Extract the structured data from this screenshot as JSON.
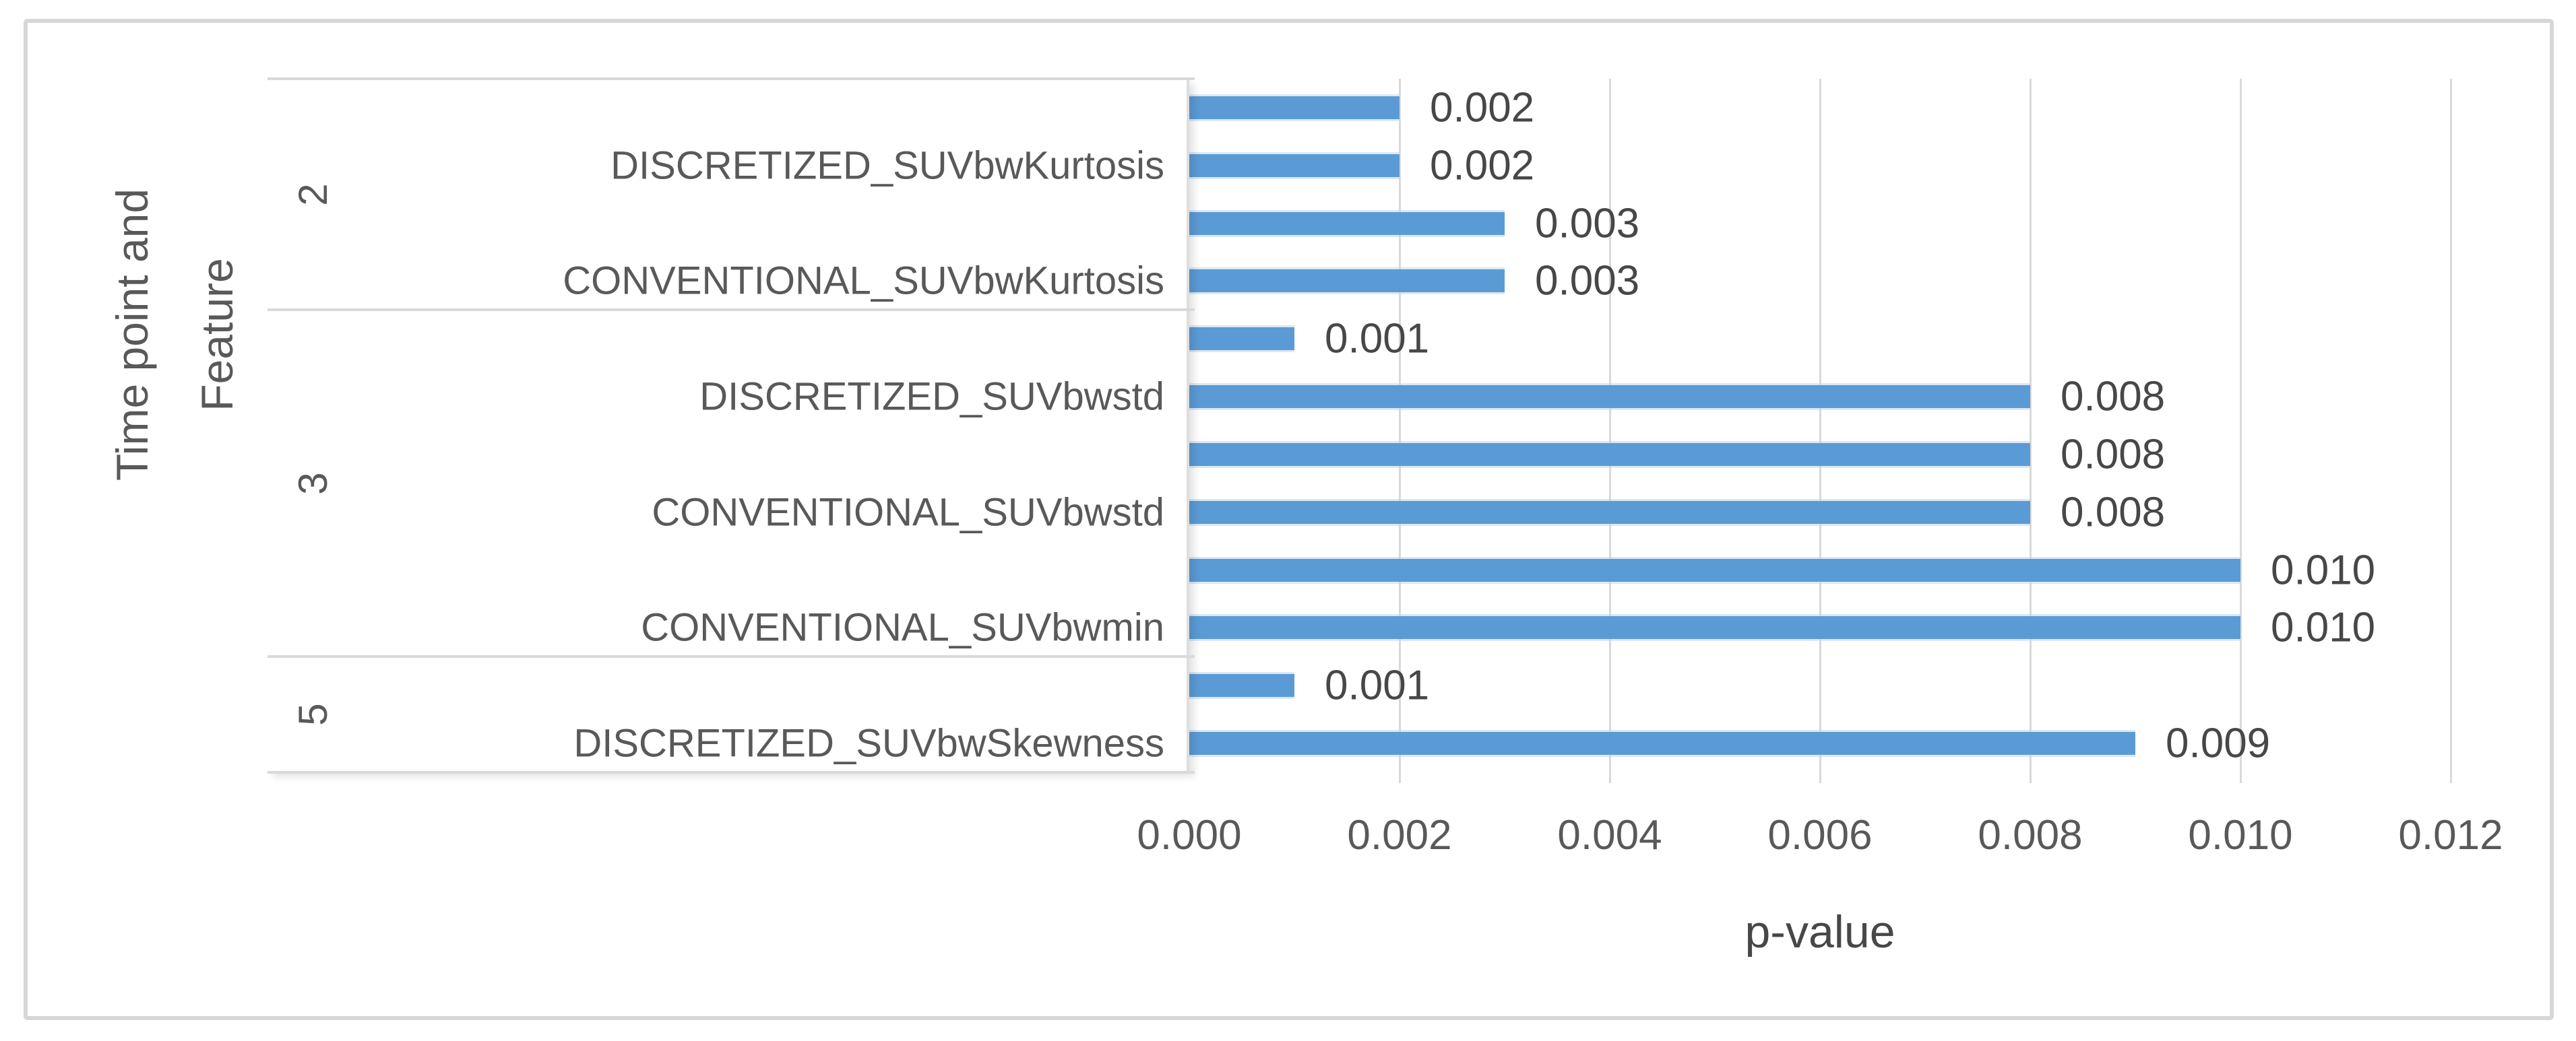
{
  "chart_data": {
    "type": "bar",
    "orientation": "horizontal",
    "xlabel": "p-value",
    "ylabel": "Time point and Feature",
    "ylabel_lines": [
      "Time point and",
      "Feature"
    ],
    "xlim": [
      0,
      0.012
    ],
    "x_ticks": [
      "0.000",
      "0.002",
      "0.004",
      "0.006",
      "0.008",
      "0.010",
      "0.012"
    ],
    "grid": true,
    "legend": false,
    "bar_color": "#5b9bd5",
    "grid_color": "#d9d9d9",
    "axis_text_color": "#595959",
    "groups": [
      {
        "time_point": "2",
        "features": [
          {
            "name": "DISCRETIZED_SUVbwKurtosis",
            "values": [
              0.002,
              0.002
            ],
            "value_labels": [
              "0.002",
              "0.002"
            ]
          },
          {
            "name": "CONVENTIONAL_SUVbwKurtosis",
            "values": [
              0.003,
              0.003
            ],
            "value_labels": [
              "0.003",
              "0.003"
            ]
          }
        ]
      },
      {
        "time_point": "3",
        "features": [
          {
            "name": "DISCRETIZED_SUVbwstd",
            "values": [
              0.001,
              0.008
            ],
            "value_labels": [
              "0.001",
              "0.008"
            ]
          },
          {
            "name": "CONVENTIONAL_SUVbwstd",
            "values": [
              0.008,
              0.008
            ],
            "value_labels": [
              "0.008",
              "0.008"
            ]
          },
          {
            "name": "CONVENTIONAL_SUVbwmin",
            "values": [
              0.01,
              0.01
            ],
            "value_labels": [
              "0.010",
              "0.010"
            ]
          }
        ]
      },
      {
        "time_point": "5",
        "features": [
          {
            "name": "DISCRETIZED_SUVbwSkewness",
            "values": [
              0.001,
              0.009
            ],
            "value_labels": [
              "0.001",
              "0.009"
            ]
          }
        ]
      }
    ]
  }
}
